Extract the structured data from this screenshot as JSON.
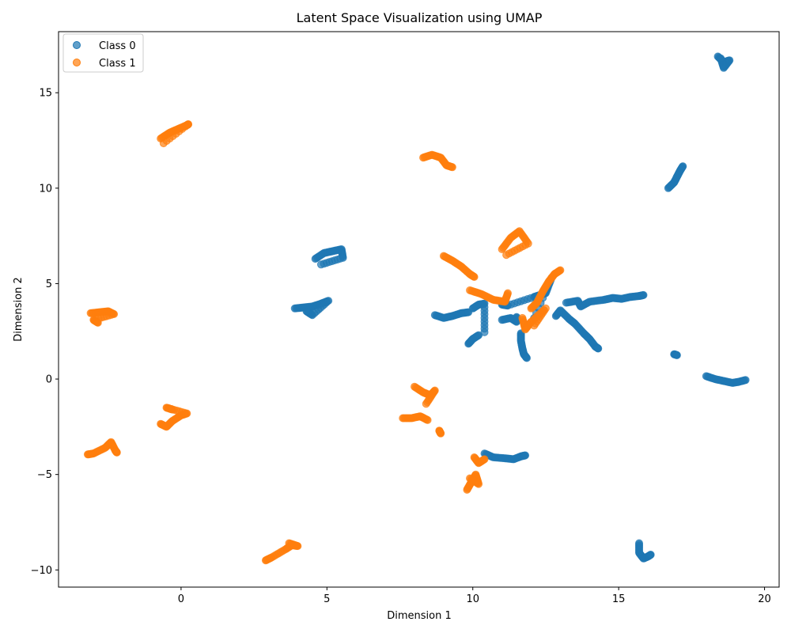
{
  "chart_data": {
    "type": "scatter",
    "title": "Latent Space Visualization using UMAP",
    "xlabel": "Dimension 1",
    "ylabel": "Dimension 2",
    "xlim": [
      -4.2,
      20.5
    ],
    "ylim": [
      -10.9,
      18.2
    ],
    "xticks": [
      0,
      5,
      10,
      15,
      20
    ],
    "yticks": [
      -10,
      -5,
      0,
      5,
      10,
      15
    ],
    "legend": "top-left",
    "grid": false,
    "series": [
      {
        "name": "Class 0",
        "color": "#1f77b4",
        "segments": [
          [
            [
              18.4,
              16.9
            ],
            [
              18.6,
              16.6
            ],
            [
              18.8,
              16.7
            ],
            [
              18.6,
              16.3
            ],
            [
              18.5,
              16.8
            ]
          ],
          [
            [
              16.7,
              10.0
            ],
            [
              16.9,
              10.3
            ],
            [
              17.0,
              10.6
            ],
            [
              17.1,
              10.9
            ],
            [
              17.2,
              11.15
            ]
          ],
          [
            [
              3.9,
              3.7
            ],
            [
              4.2,
              3.75
            ],
            [
              4.5,
              3.8
            ],
            [
              4.8,
              3.95
            ],
            [
              5.05,
              4.1
            ],
            [
              4.5,
              3.35
            ],
            [
              4.3,
              3.55
            ]
          ],
          [
            [
              4.6,
              6.3
            ],
            [
              4.9,
              6.6
            ],
            [
              5.2,
              6.7
            ],
            [
              5.5,
              6.8
            ],
            [
              5.55,
              6.35
            ],
            [
              4.8,
              6.0
            ]
          ],
          [
            [
              8.7,
              3.35
            ],
            [
              9.0,
              3.2
            ],
            [
              9.3,
              3.3
            ],
            [
              9.6,
              3.45
            ],
            [
              9.85,
              3.5
            ]
          ],
          [
            [
              9.85,
              1.85
            ],
            [
              10.0,
              2.1
            ],
            [
              10.2,
              2.3
            ]
          ],
          [
            [
              10.0,
              3.7
            ],
            [
              10.2,
              3.9
            ],
            [
              10.4,
              3.95
            ],
            [
              10.4,
              2.45
            ]
          ],
          [
            [
              11.0,
              3.1
            ],
            [
              11.3,
              3.2
            ],
            [
              11.5,
              3.0
            ],
            [
              11.5,
              3.25
            ]
          ],
          [
            [
              11.65,
              2.4
            ],
            [
              11.65,
              2.0
            ],
            [
              11.7,
              1.6
            ],
            [
              11.75,
              1.3
            ],
            [
              11.85,
              1.1
            ]
          ],
          [
            [
              11.0,
              3.9
            ],
            [
              11.2,
              3.85
            ],
            [
              12.1,
              4.3
            ],
            [
              12.3,
              4.4
            ],
            [
              12.5,
              4.5
            ],
            [
              12.7,
              5.3
            ],
            [
              12.1,
              3.2
            ]
          ],
          [
            [
              12.85,
              3.3
            ],
            [
              13.0,
              3.6
            ],
            [
              13.3,
              3.15
            ],
            [
              13.5,
              2.9
            ],
            [
              13.8,
              2.4
            ],
            [
              14.0,
              2.1
            ],
            [
              14.2,
              1.7
            ],
            [
              14.3,
              1.6
            ]
          ],
          [
            [
              13.2,
              4.0
            ],
            [
              13.6,
              4.1
            ],
            [
              13.7,
              3.8
            ],
            [
              14.0,
              4.05
            ],
            [
              14.5,
              4.15
            ],
            [
              14.8,
              4.25
            ],
            [
              15.1,
              4.2
            ],
            [
              15.4,
              4.3
            ],
            [
              15.7,
              4.35
            ],
            [
              15.85,
              4.4
            ]
          ],
          [
            [
              16.9,
              1.3
            ],
            [
              17.0,
              1.25
            ]
          ],
          [
            [
              18.0,
              0.15
            ],
            [
              18.3,
              0.0
            ],
            [
              18.6,
              -0.1
            ],
            [
              18.9,
              -0.2
            ],
            [
              19.1,
              -0.15
            ],
            [
              19.35,
              -0.05
            ]
          ],
          [
            [
              10.4,
              -3.9
            ],
            [
              10.7,
              -4.1
            ],
            [
              11.1,
              -4.15
            ],
            [
              11.4,
              -4.2
            ],
            [
              11.65,
              -4.05
            ],
            [
              11.8,
              -4.0
            ]
          ],
          [
            [
              15.7,
              -8.6
            ],
            [
              15.7,
              -9.1
            ],
            [
              15.85,
              -9.4
            ],
            [
              16.0,
              -9.3
            ],
            [
              16.1,
              -9.2
            ]
          ]
        ]
      },
      {
        "name": "Class 1",
        "color": "#ff7f0e",
        "segments": [
          [
            [
              -0.7,
              12.6
            ],
            [
              -0.4,
              12.9
            ],
            [
              -0.1,
              13.1
            ],
            [
              0.2,
              13.3
            ],
            [
              0.25,
              13.35
            ],
            [
              -0.6,
              12.35
            ]
          ],
          [
            [
              8.3,
              11.6
            ],
            [
              8.6,
              11.75
            ],
            [
              8.9,
              11.6
            ],
            [
              9.1,
              11.2
            ],
            [
              9.3,
              11.1
            ]
          ],
          [
            [
              11.0,
              6.8
            ],
            [
              11.3,
              7.4
            ],
            [
              11.6,
              7.75
            ],
            [
              11.9,
              7.1
            ],
            [
              11.15,
              6.5
            ]
          ],
          [
            [
              9.0,
              6.45
            ],
            [
              9.3,
              6.2
            ],
            [
              9.6,
              5.9
            ],
            [
              9.9,
              5.5
            ],
            [
              10.05,
              5.35
            ]
          ],
          [
            [
              9.9,
              4.65
            ],
            [
              10.3,
              4.45
            ],
            [
              10.7,
              4.15
            ],
            [
              11.1,
              4.05
            ],
            [
              11.2,
              4.5
            ]
          ],
          [
            [
              12.0,
              3.7
            ],
            [
              12.2,
              4.0
            ],
            [
              12.4,
              4.6
            ],
            [
              12.6,
              5.1
            ],
            [
              12.8,
              5.5
            ],
            [
              13.0,
              5.7
            ]
          ],
          [
            [
              11.7,
              3.2
            ],
            [
              11.8,
              2.6
            ],
            [
              12.0,
              3.0
            ],
            [
              12.5,
              3.7
            ],
            [
              12.1,
              2.8
            ]
          ],
          [
            [
              -3.1,
              3.45
            ],
            [
              -2.8,
              3.5
            ],
            [
              -2.5,
              3.55
            ],
            [
              -2.3,
              3.4
            ],
            [
              -3.0,
              3.1
            ],
            [
              -2.85,
              2.95
            ]
          ],
          [
            [
              -0.7,
              -2.35
            ],
            [
              -0.5,
              -2.5
            ],
            [
              -0.3,
              -2.2
            ],
            [
              0.0,
              -1.9
            ],
            [
              0.2,
              -1.8
            ],
            [
              -0.5,
              -1.5
            ],
            [
              -0.3,
              -1.6
            ]
          ],
          [
            [
              -3.2,
              -3.95
            ],
            [
              -3.0,
              -3.9
            ],
            [
              -2.6,
              -3.6
            ],
            [
              -2.4,
              -3.3
            ],
            [
              -2.25,
              -3.75
            ],
            [
              -2.2,
              -3.85
            ]
          ],
          [
            [
              7.6,
              -2.05
            ],
            [
              7.9,
              -2.05
            ],
            [
              8.2,
              -1.95
            ],
            [
              8.45,
              -2.15
            ]
          ],
          [
            [
              8.0,
              -0.4
            ],
            [
              8.3,
              -0.7
            ],
            [
              8.55,
              -0.85
            ],
            [
              8.7,
              -0.6
            ],
            [
              8.4,
              -1.3
            ]
          ],
          [
            [
              8.85,
              -2.7
            ],
            [
              8.9,
              -2.85
            ]
          ],
          [
            [
              10.05,
              -4.1
            ],
            [
              10.2,
              -4.4
            ],
            [
              10.4,
              -4.2
            ]
          ],
          [
            [
              9.8,
              -5.8
            ],
            [
              9.95,
              -5.4
            ],
            [
              10.1,
              -5.0
            ],
            [
              10.2,
              -5.5
            ],
            [
              9.9,
              -5.2
            ]
          ],
          [
            [
              2.9,
              -9.5
            ],
            [
              3.1,
              -9.35
            ],
            [
              3.6,
              -8.9
            ],
            [
              3.8,
              -8.7
            ],
            [
              4.0,
              -8.75
            ],
            [
              3.7,
              -8.6
            ]
          ]
        ]
      }
    ]
  }
}
